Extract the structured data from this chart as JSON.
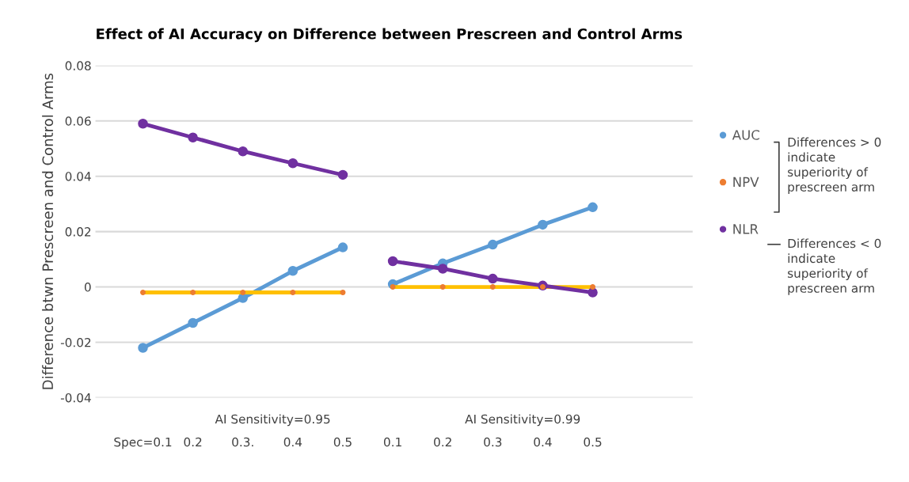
{
  "chart_data": {
    "type": "line",
    "title": "Effect of AI Accuracy on Difference between Prescreen and Control Arms",
    "ylabel": "Difference btwn Prescreen and Control Arms",
    "categories": [
      "Spec=0.1",
      "0.2",
      "0.3.",
      "0.4",
      "0.5",
      "0.1",
      "0.2",
      "0.3",
      "0.4",
      "0.5"
    ],
    "series": [
      {
        "name": "AUC",
        "color": "#5b9bd5",
        "marker": "circle",
        "values": [
          -0.022,
          -0.013,
          -0.004,
          0.0058,
          0.0143,
          null,
          null,
          null,
          null,
          null
        ]
      },
      {
        "color": "#5b9bd5",
        "marker": "circle",
        "values": [
          null,
          null,
          null,
          null,
          null,
          0.001,
          0.0085,
          0.0153,
          0.0225,
          0.0288
        ]
      },
      {
        "name": "NPV",
        "color": "#ed7d31",
        "type": "scatter",
        "marker": "circle",
        "values": [
          -0.002,
          -0.002,
          -0.002,
          -0.002,
          -0.002,
          0,
          0,
          0,
          0,
          0
        ]
      },
      {
        "color": "#ffc000",
        "type": "line",
        "values": [
          -0.002,
          -0.002,
          -0.002,
          -0.002,
          -0.002,
          null,
          null,
          null,
          null,
          null
        ]
      },
      {
        "color": "#ffc000",
        "type": "line",
        "values": [
          null,
          null,
          null,
          null,
          null,
          0,
          0,
          0,
          0,
          0
        ]
      },
      {
        "name": "NLR",
        "color": "#7030a0",
        "marker": "circle",
        "values": [
          0.059,
          0.054,
          0.049,
          0.0447,
          0.0405,
          null,
          null,
          null,
          null,
          null
        ]
      },
      {
        "color": "#7030a0",
        "marker": "circle",
        "values": [
          null,
          null,
          null,
          null,
          null,
          0.0093,
          0.0066,
          0.003,
          0.0005,
          -0.002
        ]
      }
    ],
    "ylim": [
      -0.04,
      0.08
    ],
    "yticks": [
      {
        "value": -0.04,
        "label": "-0.04"
      },
      {
        "value": -0.02,
        "label": "-0.02"
      },
      0,
      0.02,
      0.04,
      0.06,
      0.08
    ],
    "grid": "y",
    "legend": "right",
    "annotations": [
      "AI Sensitivity=0.95",
      "AI Sensitivity=0.99",
      "Differences > 0\nindicate\nsuperiority of\nprescreen arm",
      "Differences < 0\nindicate\nsuperiority of\nprescreen arm"
    ]
  }
}
